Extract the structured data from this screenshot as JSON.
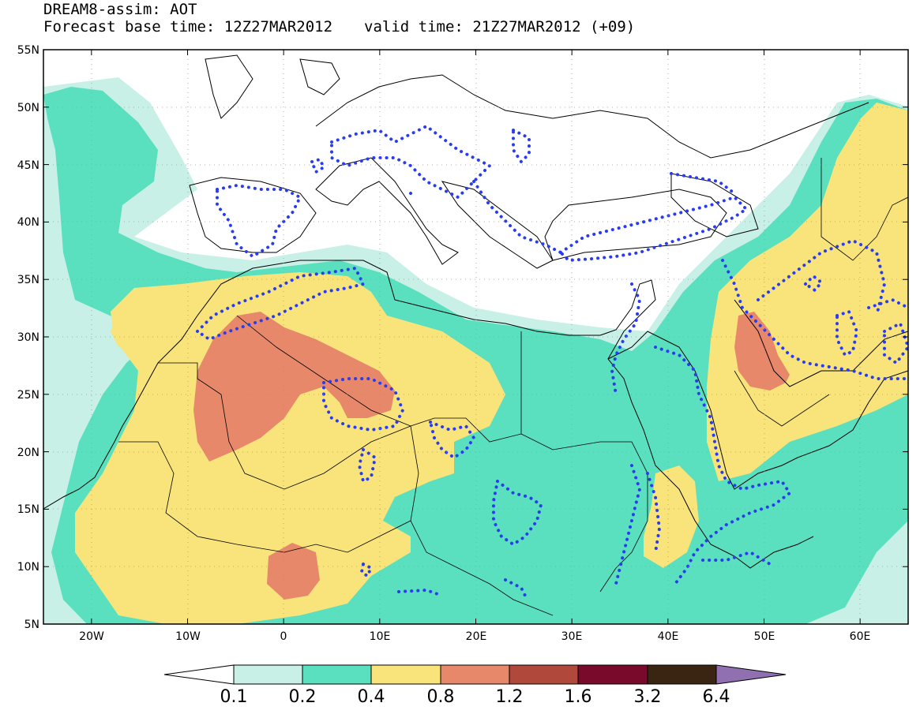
{
  "title": {
    "line1": "DREAM8-assim: AOT",
    "base_time": "Forecast base time: 12Z27MAR2012",
    "valid_time": "valid time: 21Z27MAR2012 (+09)"
  },
  "axes": {
    "lat_ticks": [
      "55N",
      "50N",
      "45N",
      "40N",
      "35N",
      "30N",
      "25N",
      "20N",
      "15N",
      "10N",
      "5N"
    ],
    "lon_ticks": [
      "20W",
      "10W",
      "0",
      "10E",
      "20E",
      "30E",
      "40E",
      "50E",
      "60E"
    ],
    "lon_range": [
      -25,
      65
    ],
    "lat_range": [
      5,
      55
    ]
  },
  "colorbar": {
    "labels": [
      "0.1",
      "0.2",
      "0.4",
      "0.8",
      "1.2",
      "1.6",
      "3.2",
      "6.4"
    ],
    "colors": [
      "#ffffff",
      "#c8f0e6",
      "#5ae0be",
      "#f8e47a",
      "#e8886a",
      "#b0483c",
      "#7a0a2c",
      "#3a2412",
      "#9070b0"
    ]
  },
  "map": {
    "palette": {
      "c01": "#c8f0e6",
      "c02": "#5ae0be",
      "c04": "#f8e47a",
      "c08": "#e8886a",
      "contour": "#2a3cf0"
    }
  }
}
